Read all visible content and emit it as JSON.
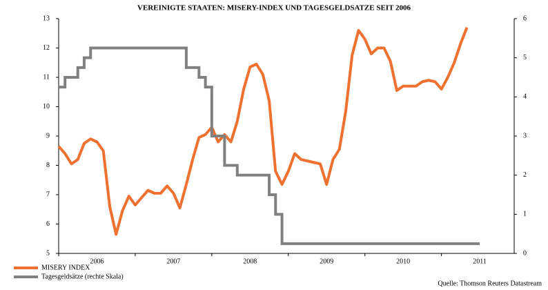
{
  "chart_data": {
    "type": "line",
    "title": "VEREINIGTE STAATEN: MISERY-INDEX UND TAGESGELDSATZE SEIT 2006",
    "source": "Quelle: Thomson Reuters Datastream",
    "x": [
      2006,
      2006.083,
      2006.167,
      2006.25,
      2006.333,
      2006.417,
      2006.5,
      2006.583,
      2006.667,
      2006.75,
      2006.833,
      2006.917,
      2007,
      2007.083,
      2007.167,
      2007.25,
      2007.333,
      2007.417,
      2007.5,
      2007.583,
      2007.667,
      2007.75,
      2007.833,
      2007.917,
      2008,
      2008.083,
      2008.167,
      2008.25,
      2008.333,
      2008.417,
      2008.5,
      2008.583,
      2008.667,
      2008.75,
      2008.833,
      2008.917,
      2009,
      2009.083,
      2009.167,
      2009.25,
      2009.333,
      2009.417,
      2009.5,
      2009.583,
      2009.667,
      2009.75,
      2009.833,
      2009.917,
      2010,
      2010.083,
      2010.167,
      2010.25,
      2010.333,
      2010.417,
      2010.5,
      2010.583,
      2010.667,
      2010.75,
      2010.833,
      2010.917,
      2011,
      2011.083,
      2011.167,
      2011.25,
      2011.333,
      2011.417,
      2011.5
    ],
    "series": [
      {
        "name": "MISERY INDEX",
        "color": "#f07030",
        "axis": "y",
        "values": [
          8.65,
          8.4,
          8.05,
          8.2,
          8.75,
          8.9,
          8.8,
          8.5,
          6.6,
          5.65,
          6.45,
          6.95,
          6.65,
          6.9,
          7.15,
          7.05,
          7.05,
          7.3,
          7.05,
          6.55,
          7.35,
          8.2,
          8.95,
          9.05,
          9.3,
          8.8,
          9.05,
          8.8,
          9.5,
          10.6,
          11.35,
          11.45,
          11.1,
          10.2,
          7.8,
          7.35,
          7.8,
          8.4,
          8.2,
          8.15,
          8.1,
          8.05,
          7.35,
          8.2,
          8.55,
          9.85,
          11.75,
          12.6,
          12.3,
          11.8,
          12,
          12,
          11.55,
          10.55,
          10.7,
          10.7,
          10.7,
          10.85,
          10.9,
          10.85,
          10.6,
          11,
          11.5,
          12.15,
          12.7,
          null,
          null
        ]
      },
      {
        "name": "Tagesgeldsätze (rechte Skala)",
        "color": "#808080",
        "axis": "y2",
        "step": "post",
        "values": [
          4.25,
          4.5,
          4.5,
          4.75,
          5,
          5.25,
          5.25,
          5.25,
          5.25,
          5.25,
          5.25,
          5.25,
          5.25,
          5.25,
          5.25,
          5.25,
          5.25,
          5.25,
          5.25,
          5.25,
          4.75,
          4.75,
          4.5,
          4.25,
          3,
          3,
          2.25,
          2.25,
          2,
          2,
          2,
          2,
          2,
          1.5,
          1,
          0.25,
          0.25,
          0.25,
          0.25,
          0.25,
          0.25,
          0.25,
          0.25,
          0.25,
          0.25,
          0.25,
          0.25,
          0.25,
          0.25,
          0.25,
          0.25,
          0.25,
          0.25,
          0.25,
          0.25,
          0.25,
          0.25,
          0.25,
          0.25,
          0.25,
          0.25,
          0.25,
          0.25,
          0.25,
          0.25,
          0.25,
          0.25
        ]
      }
    ],
    "xlim": [
      2006,
      2011.95
    ],
    "xticks": [
      2006,
      2007,
      2008,
      2009,
      2010,
      2011
    ],
    "ylim": [
      5,
      13
    ],
    "yticks": [
      5,
      6,
      7,
      8,
      9,
      10,
      11,
      12,
      13
    ],
    "y2lim": [
      0,
      6
    ],
    "y2ticks": [
      0,
      1,
      2,
      3,
      4,
      5,
      6
    ]
  }
}
